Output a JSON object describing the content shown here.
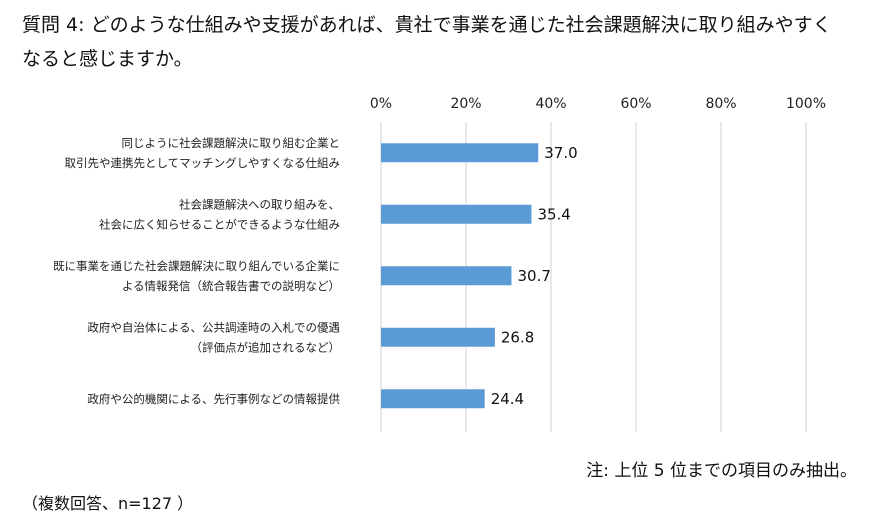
{
  "title_lines": [
    "質問 4: どのような仕組みや支援があれば、貴社で事業を通じた社会課題解決に取り組みやすく",
    "なると感じますか。"
  ],
  "note": "注: 上位 5 位までの項目のみ抽出。",
  "sample": "（複数回答、n=127 ）",
  "colors": {
    "bar": "#5B9BD5",
    "grid": "#D0D0D0"
  },
  "chart_data": {
    "type": "bar",
    "orientation": "horizontal",
    "categories": [
      [
        "同じように社会課題解決に取り組む企業と",
        "取引先や連携先としてマッチングしやすくなる仕組み"
      ],
      [
        "社会課題解決への取り組みを、",
        "社会に広く知らせることができるような仕組み"
      ],
      [
        "既に事業を通じた社会課題解決に取り組んでいる企業に",
        "よる情報発信（統合報告書での説明など）"
      ],
      [
        "政府や自治体による、公共調達時の入札での優遇",
        "（評価点が追加されるなど）"
      ],
      [
        "政府や公的機関による、先行事例などの情報提供"
      ]
    ],
    "values": [
      37.0,
      35.4,
      30.7,
      26.8,
      24.4
    ],
    "value_labels": [
      "37.0",
      "35.4",
      "30.7",
      "26.8",
      "24.4"
    ],
    "xlim": [
      0,
      100
    ],
    "xticks": [
      "0%",
      "20%",
      "40%",
      "60%",
      "80%",
      "100%"
    ],
    "tick_values": [
      0,
      20,
      40,
      60,
      80,
      100
    ],
    "axis_position": "top",
    "grid": true
  }
}
